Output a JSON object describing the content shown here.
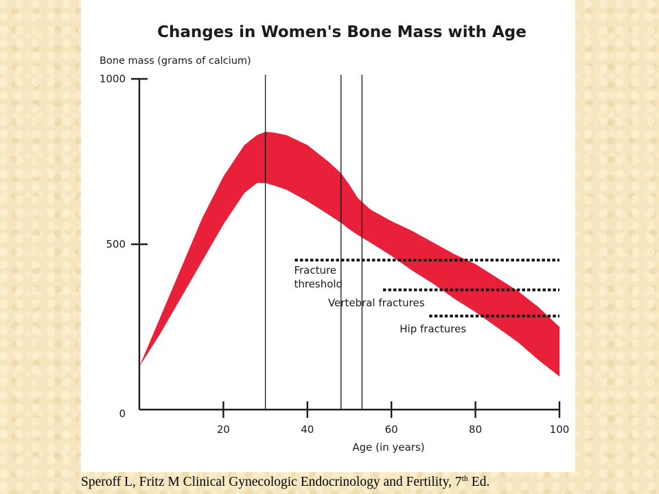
{
  "citation": {
    "prefix": "Speroff L, Fritz M Clinical Gynecologic Endocrinology and Fertility, 7",
    "sup": "th",
    "suffix": " Ed."
  },
  "colors": {
    "band": "#e8203a",
    "axis": "#1a1a1a"
  },
  "chart_data": {
    "type": "area",
    "title": "Changes in Women's Bone Mass with Age",
    "ylabel": "Bone mass (grams of calcium)",
    "xlabel": "Age (in years)",
    "xlim": [
      0,
      100
    ],
    "ylim": [
      0,
      1000
    ],
    "x_ticks": [
      20,
      40,
      60,
      80,
      100
    ],
    "y_ticks": [
      0,
      500,
      1000
    ],
    "x_tick_labels": [
      "20",
      "40",
      "60",
      "80",
      "100"
    ],
    "y_tick_labels": [
      "0",
      "500",
      "1000"
    ],
    "series": [
      {
        "x": [
          0,
          5,
          10,
          15,
          20,
          25,
          28,
          30,
          32,
          35,
          40,
          45,
          48,
          50,
          52,
          55,
          60,
          65,
          70,
          75,
          80,
          85,
          90,
          95,
          100
        ],
        "upper": [
          130,
          280,
          430,
          580,
          705,
          800,
          830,
          840,
          838,
          830,
          800,
          750,
          715,
          680,
          640,
          605,
          570,
          540,
          505,
          470,
          440,
          400,
          360,
          310,
          250
        ],
        "lower": [
          130,
          230,
          340,
          450,
          560,
          655,
          685,
          685,
          678,
          665,
          630,
          590,
          565,
          545,
          528,
          505,
          465,
          420,
          380,
          335,
          295,
          250,
          205,
          150,
          100
        ]
      }
    ],
    "vertical_lines": [
      30,
      48,
      53
    ],
    "thresholds": [
      {
        "label": "Fracture threshold",
        "label_lines": [
          "Fracture",
          "threshold"
        ],
        "y": 452,
        "x_start": 37,
        "x_end": 100
      },
      {
        "label": "Vertebral fractures",
        "y": 362,
        "x_start": 58,
        "x_end": 100
      },
      {
        "label": "Hip fractures",
        "y": 283,
        "x_start": 69,
        "x_end": 100
      }
    ],
    "grid": false,
    "legend": "none"
  }
}
